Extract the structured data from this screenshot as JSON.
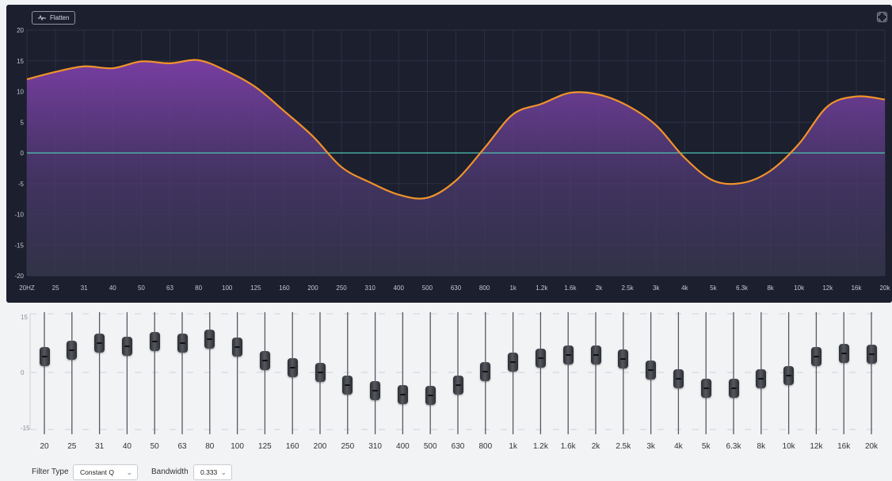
{
  "graph": {
    "flatten_label": "Flatten",
    "y_ticks": [
      "20",
      "15",
      "10",
      "5",
      "0",
      "-5",
      "-10",
      "-15",
      "-20"
    ],
    "x_ticks": [
      "20HZ",
      "25",
      "31",
      "40",
      "50",
      "63",
      "80",
      "100",
      "125",
      "160",
      "200",
      "250",
      "310",
      "400",
      "500",
      "630",
      "800",
      "1k",
      "1.2k",
      "1.6k",
      "2k",
      "2.5k",
      "3k",
      "4k",
      "5k",
      "6.3k",
      "8k",
      "10k",
      "12k",
      "16k",
      "20k"
    ],
    "curve": [
      12,
      13.2,
      14.1,
      13.8,
      14.9,
      14.6,
      15.1,
      13.3,
      10.7,
      6.8,
      2.7,
      -2.3,
      -4.8,
      -6.8,
      -7.3,
      -4.5,
      0.8,
      6.3,
      8,
      9.8,
      9.5,
      7.7,
      4.5,
      -0.8,
      -4.5,
      -4.9,
      -2.9,
      1.5,
      7.6,
      9.2,
      8.7
    ],
    "colors": {
      "background": "#1c1f2e",
      "curve": "#f0922a",
      "zero_line": "#4dc3b2",
      "fill_top": "#7d3fa8"
    }
  },
  "sliders": {
    "scale": [
      "15",
      "0",
      "-15"
    ],
    "bands": [
      {
        "label": "20",
        "gain": 4
      },
      {
        "label": "25",
        "gain": 5.7
      },
      {
        "label": "31",
        "gain": 7.5
      },
      {
        "label": "40",
        "gain": 6.6
      },
      {
        "label": "50",
        "gain": 7.9
      },
      {
        "label": "63",
        "gain": 7.5
      },
      {
        "label": "80",
        "gain": 8.5
      },
      {
        "label": "100",
        "gain": 6.4
      },
      {
        "label": "125",
        "gain": 3
      },
      {
        "label": "160",
        "gain": 1.2
      },
      {
        "label": "200",
        "gain": 0
      },
      {
        "label": "250",
        "gain": -3.3
      },
      {
        "label": "310",
        "gain": -4.7
      },
      {
        "label": "400",
        "gain": -5.6
      },
      {
        "label": "500",
        "gain": -5.9
      },
      {
        "label": "630",
        "gain": -3.2
      },
      {
        "label": "800",
        "gain": 0.2
      },
      {
        "label": "1k",
        "gain": 2.6
      },
      {
        "label": "1.2k",
        "gain": 3.6
      },
      {
        "label": "1.6k",
        "gain": 4.5
      },
      {
        "label": "2k",
        "gain": 4.5
      },
      {
        "label": "2.5k",
        "gain": 3.5
      },
      {
        "label": "3k",
        "gain": 0.7
      },
      {
        "label": "4k",
        "gain": -1.6
      },
      {
        "label": "5k",
        "gain": -4
      },
      {
        "label": "6.3k",
        "gain": -4
      },
      {
        "label": "8k",
        "gain": -1.6
      },
      {
        "label": "10k",
        "gain": -0.8
      },
      {
        "label": "12k",
        "gain": 4.1
      },
      {
        "label": "16k",
        "gain": 4.8
      },
      {
        "label": "20k",
        "gain": 4.7
      }
    ]
  },
  "controls": {
    "filter_type_label": "Filter Type",
    "filter_type_value": "Constant Q",
    "bandwidth_label": "Bandwidth",
    "bandwidth_value": "0.333"
  }
}
